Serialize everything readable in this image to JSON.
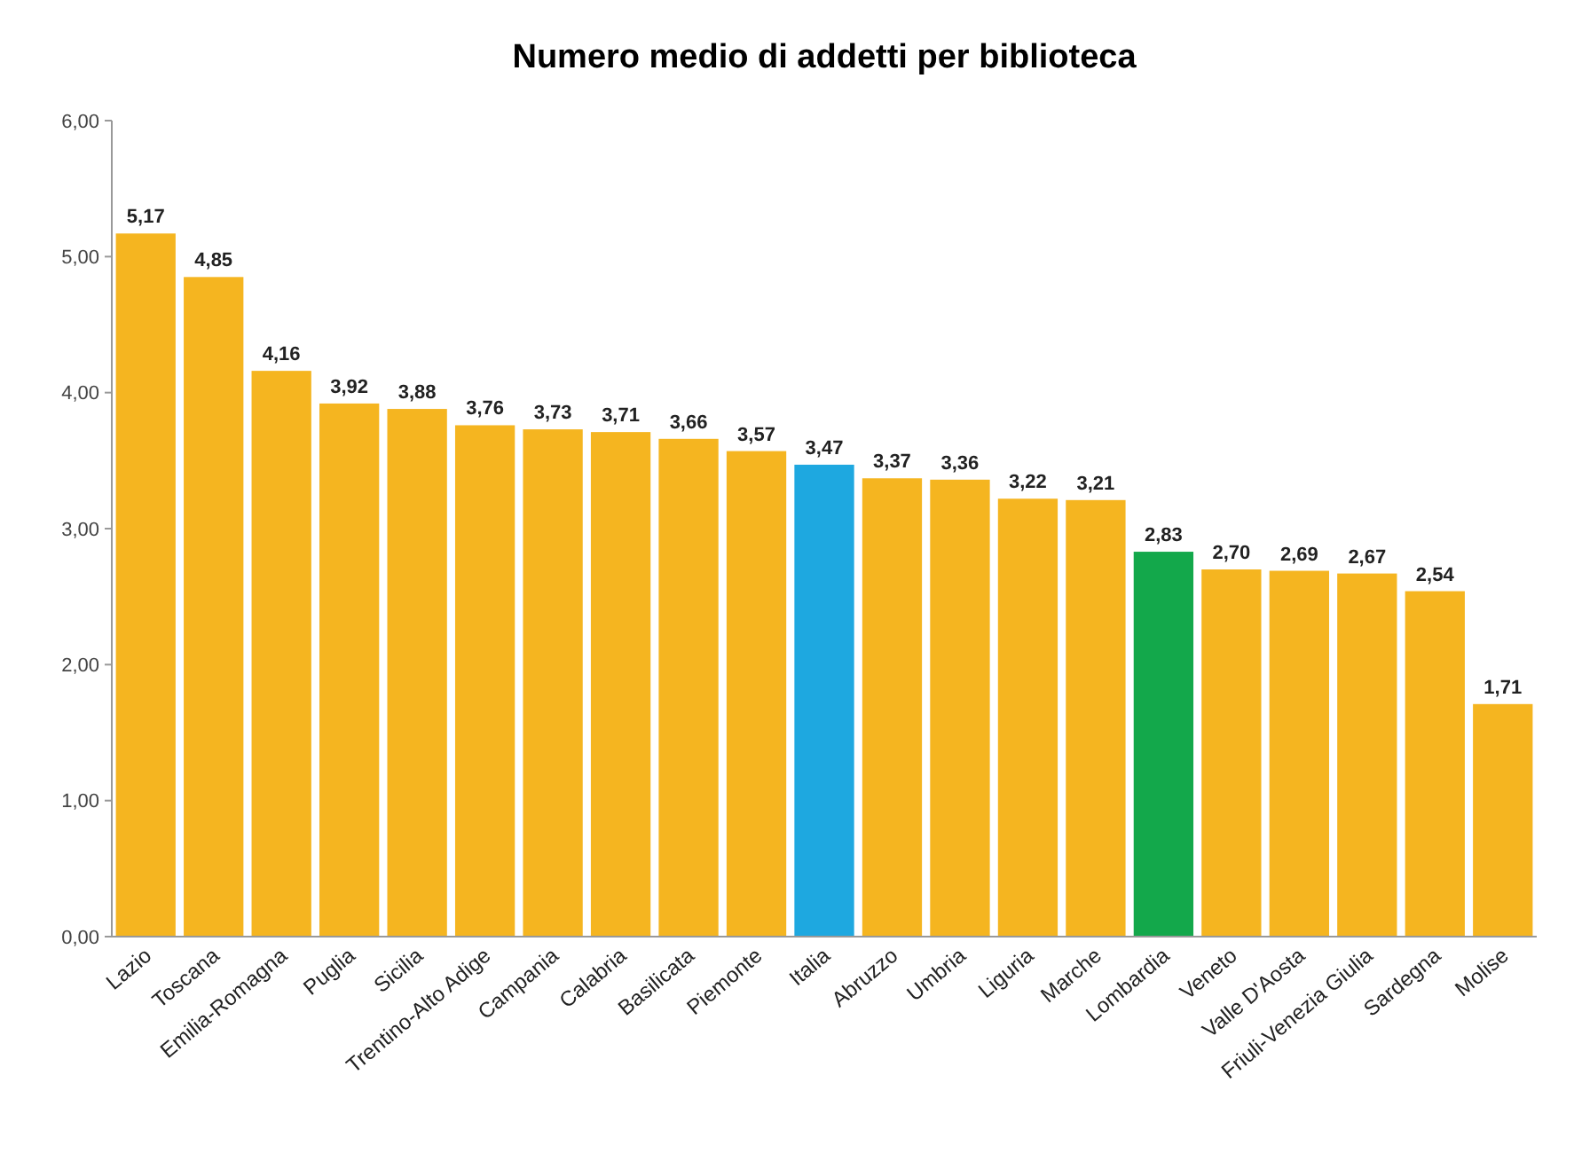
{
  "chart_data": {
    "type": "bar",
    "title": "Numero medio di addetti per biblioteca",
    "categories": [
      "Lazio",
      "Toscana",
      "Emilia-Romagna",
      "Puglia",
      "Sicilia",
      "Trentino-Alto Adige",
      "Campania",
      "Calabria",
      "Basilicata",
      "Piemonte",
      "Italia",
      "Abruzzo",
      "Umbria",
      "Liguria",
      "Marche",
      "Lombardia",
      "Veneto",
      "Valle D'Aosta",
      "Friuli-Venezia Giulia",
      "Sardegna",
      "Molise"
    ],
    "values": [
      5.17,
      4.85,
      4.16,
      3.92,
      3.88,
      3.76,
      3.73,
      3.71,
      3.66,
      3.57,
      3.47,
      3.37,
      3.36,
      3.22,
      3.21,
      2.83,
      2.7,
      2.69,
      2.67,
      2.54,
      1.71
    ],
    "value_labels": [
      "5,17",
      "4,85",
      "4,16",
      "3,92",
      "3,88",
      "3,76",
      "3,73",
      "3,71",
      "3,66",
      "3,57",
      "3,47",
      "3,37",
      "3,36",
      "3,22",
      "3,21",
      "2,83",
      "2,70",
      "2,69",
      "2,67",
      "2,54",
      "1,71"
    ],
    "colors": [
      "#f5b520",
      "#f5b520",
      "#f5b520",
      "#f5b520",
      "#f5b520",
      "#f5b520",
      "#f5b520",
      "#f5b520",
      "#f5b520",
      "#f5b520",
      "#1ea8e0",
      "#f5b520",
      "#f5b520",
      "#f5b520",
      "#f5b520",
      "#13a84b",
      "#f5b520",
      "#f5b520",
      "#f5b520",
      "#f5b520",
      "#f5b520"
    ],
    "ylim": [
      0,
      6
    ],
    "yticks": [
      {
        "value": 0,
        "label": "0,00"
      },
      {
        "value": 1,
        "label": "1,00"
      },
      {
        "value": 2,
        "label": "2,00"
      },
      {
        "value": 3,
        "label": "3,00"
      },
      {
        "value": 4,
        "label": "4,00"
      },
      {
        "value": 5,
        "label": "5,00"
      },
      {
        "value": 6,
        "label": "6,00"
      }
    ],
    "grid": false
  }
}
